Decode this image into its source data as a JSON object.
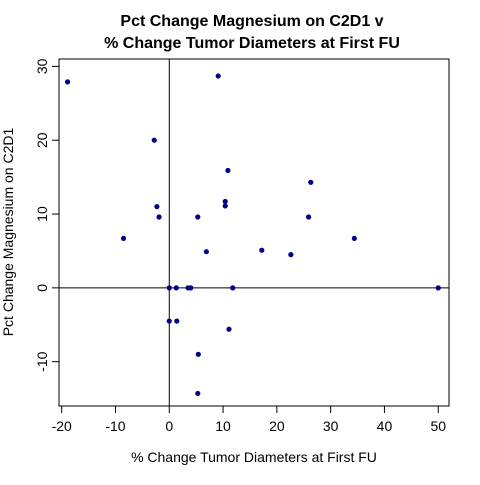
{
  "chart_data": {
    "type": "scatter",
    "title_lines": [
      "Pct Change Magnesium on C2D1 v",
      "% Change Tumor Diameters at First FU"
    ],
    "xlabel": "% Change Tumor Diameters at First FU",
    "ylabel": "Pct Change Magnesium on C2D1",
    "xlim": [
      -20.5,
      52
    ],
    "ylim": [
      -16,
      31
    ],
    "x_ticks": [
      -20,
      -10,
      0,
      10,
      20,
      30,
      40,
      50
    ],
    "y_ticks": [
      -10,
      0,
      10,
      20,
      30
    ],
    "reference_lines": {
      "x": 0,
      "y": 0
    },
    "grid": false,
    "point_color": "#00008B",
    "points": [
      {
        "x": -18.9,
        "y": 27.9
      },
      {
        "x": -8.5,
        "y": 6.7
      },
      {
        "x": -2.8,
        "y": 20.0
      },
      {
        "x": -2.3,
        "y": 11.0
      },
      {
        "x": -1.9,
        "y": 9.6
      },
      {
        "x": 0.0,
        "y": 0.0
      },
      {
        "x": 0.0,
        "y": -4.5
      },
      {
        "x": 1.3,
        "y": 0.0
      },
      {
        "x": 1.4,
        "y": -4.5
      },
      {
        "x": 3.5,
        "y": 0.0
      },
      {
        "x": 4.0,
        "y": 0.0
      },
      {
        "x": 5.3,
        "y": 9.6
      },
      {
        "x": 5.4,
        "y": -9.0
      },
      {
        "x": 5.3,
        "y": -14.3
      },
      {
        "x": 6.9,
        "y": 4.9
      },
      {
        "x": 9.1,
        "y": 28.7
      },
      {
        "x": 10.4,
        "y": 11.7
      },
      {
        "x": 10.4,
        "y": 11.1
      },
      {
        "x": 10.9,
        "y": 15.9
      },
      {
        "x": 11.1,
        "y": -5.6
      },
      {
        "x": 11.8,
        "y": 0.0
      },
      {
        "x": 17.2,
        "y": 5.1
      },
      {
        "x": 22.6,
        "y": 4.5
      },
      {
        "x": 25.9,
        "y": 9.6
      },
      {
        "x": 26.3,
        "y": 14.3
      },
      {
        "x": 34.4,
        "y": 6.7
      },
      {
        "x": 50.0,
        "y": 0.0
      }
    ]
  }
}
